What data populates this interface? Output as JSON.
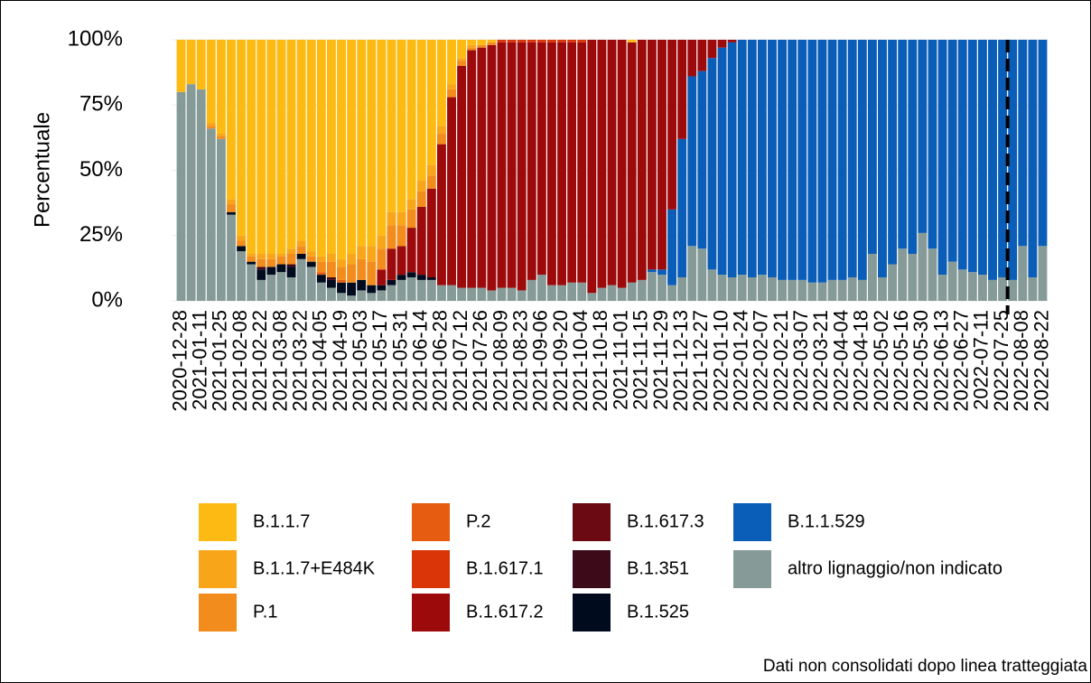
{
  "chart_data": {
    "type": "stacked_bar",
    "ylabel": "Percentuale",
    "caption": "Dati non consolidati dopo linea tratteggiata",
    "ylim": [
      0,
      100
    ],
    "yticks": [
      {
        "value": 0,
        "label": "0%"
      },
      {
        "value": 25,
        "label": "25%"
      },
      {
        "value": 50,
        "label": "50%"
      },
      {
        "value": 75,
        "label": "75%"
      },
      {
        "value": 100,
        "label": "100%"
      }
    ],
    "grid": true,
    "dashed_line_after": "2022-07-25",
    "categories": [
      "2020-12-28",
      null,
      "2021-01-11",
      null,
      "2021-01-25",
      null,
      "2021-02-08",
      null,
      "2021-02-22",
      null,
      "2021-03-08",
      null,
      "2021-03-22",
      null,
      "2021-04-05",
      null,
      "2021-04-19",
      null,
      "2021-05-03",
      null,
      "2021-05-17",
      null,
      "2021-05-31",
      null,
      "2021-06-14",
      null,
      "2021-06-28",
      null,
      "2021-07-12",
      null,
      "2021-07-26",
      null,
      "2021-08-09",
      null,
      "2021-08-23",
      null,
      "2021-09-06",
      null,
      "2021-09-20",
      null,
      "2021-10-04",
      null,
      "2021-10-18",
      null,
      "2021-11-01",
      null,
      "2021-11-15",
      null,
      "2021-11-29",
      null,
      "2021-12-13",
      null,
      "2021-12-27",
      null,
      "2022-01-10",
      null,
      "2022-01-24",
      null,
      "2022-02-07",
      null,
      "2022-02-21",
      null,
      "2022-03-07",
      null,
      "2022-03-21",
      null,
      "2022-04-04",
      null,
      "2022-04-18",
      null,
      "2022-05-02",
      null,
      "2022-05-16",
      null,
      "2022-05-30",
      null,
      "2022-06-13",
      null,
      "2022-06-27",
      null,
      "2022-07-11",
      null,
      "2022-07-25",
      null,
      "2022-08-08",
      null,
      "2022-08-22"
    ],
    "series": [
      {
        "name": "B.1.1.7",
        "color": "#fdba12",
        "values": [
          20,
          17,
          19,
          32,
          36,
          61,
          75,
          82,
          82,
          82,
          82,
          80,
          77,
          81,
          83,
          82,
          84,
          82,
          79,
          79,
          75,
          66,
          66,
          61,
          54,
          48,
          33,
          17,
          7,
          2,
          2,
          1,
          0,
          0,
          0,
          0,
          0,
          0,
          0,
          0,
          0,
          0,
          0,
          0,
          0,
          1,
          0,
          0,
          0,
          0,
          0,
          0,
          0,
          0,
          0,
          0,
          0,
          0,
          0,
          0,
          0,
          0,
          0,
          0,
          0,
          0,
          0,
          0,
          0,
          0,
          0,
          0,
          0,
          0,
          0,
          0,
          0,
          0,
          0,
          0,
          0,
          0,
          0,
          0,
          0,
          0,
          0
        ]
      },
      {
        "name": "B.1.1.7+E484K",
        "color": "#f8a51a",
        "values": [
          0,
          0,
          0,
          1,
          1,
          2,
          2,
          1,
          2,
          2,
          1,
          2,
          2,
          2,
          2,
          3,
          3,
          4,
          5,
          6,
          5,
          5,
          5,
          4,
          4,
          4,
          3,
          2,
          1,
          1,
          0,
          0,
          0,
          0,
          0,
          0,
          0,
          0,
          0,
          0,
          0,
          0,
          0,
          0,
          0,
          0,
          0,
          0,
          0,
          0,
          0,
          0,
          0,
          0,
          0,
          0,
          0,
          0,
          0,
          0,
          0,
          0,
          0,
          0,
          0,
          0,
          0,
          0,
          0,
          0,
          0,
          0,
          0,
          0,
          0,
          0,
          0,
          0,
          0,
          0,
          0,
          0,
          0,
          0,
          0,
          0,
          0
        ]
      },
      {
        "name": "P.1",
        "color": "#f28c1c",
        "values": [
          0,
          0,
          0,
          1,
          1,
          3,
          2,
          2,
          3,
          3,
          3,
          4,
          3,
          2,
          4,
          6,
          5,
          7,
          8,
          9,
          8,
          9,
          8,
          7,
          6,
          5,
          4,
          3,
          2,
          1,
          1,
          1,
          0,
          0,
          0,
          0,
          0,
          0,
          0,
          0,
          0,
          0,
          0,
          0,
          0,
          0,
          0,
          0,
          0,
          0,
          0,
          0,
          0,
          0,
          0,
          0,
          0,
          0,
          0,
          0,
          0,
          0,
          0,
          0,
          0,
          0,
          0,
          0,
          0,
          0,
          0,
          0,
          0,
          0,
          0,
          0,
          0,
          0,
          0,
          0,
          0,
          0,
          0,
          0,
          0,
          0,
          0
        ]
      },
      {
        "name": "P.2",
        "color": "#e65c11",
        "values": [
          0,
          0,
          0,
          0,
          0,
          0,
          0,
          0,
          0,
          0,
          0,
          0,
          0,
          0,
          1,
          0,
          1,
          0,
          0,
          0,
          0,
          0,
          0,
          0,
          0,
          0,
          0,
          0,
          0,
          0,
          0,
          0,
          0,
          0,
          0,
          0,
          0,
          0,
          0,
          0,
          0,
          0,
          0,
          0,
          0,
          0,
          0,
          0,
          0,
          0,
          0,
          0,
          0,
          0,
          0,
          0,
          0,
          0,
          0,
          0,
          0,
          0,
          0,
          0,
          0,
          0,
          0,
          0,
          0,
          0,
          0,
          0,
          0,
          0,
          0,
          0,
          0,
          0,
          0,
          0,
          0,
          0,
          0,
          0,
          0,
          0,
          0
        ]
      },
      {
        "name": "B.1.617.1",
        "color": "#da3409",
        "values": [
          0,
          0,
          0,
          0,
          0,
          0,
          0,
          0,
          0,
          0,
          0,
          0,
          0,
          0,
          0,
          0,
          0,
          0,
          0,
          0,
          0,
          0,
          0,
          0,
          0,
          0,
          0,
          0,
          0,
          0,
          0,
          0,
          1,
          1,
          1,
          1,
          1,
          1,
          1,
          1,
          1,
          0,
          0,
          0,
          0,
          0,
          0,
          0,
          0,
          0,
          0,
          0,
          0,
          0,
          0,
          0,
          0,
          0,
          0,
          0,
          0,
          0,
          0,
          0,
          0,
          0,
          0,
          0,
          0,
          0,
          0,
          0,
          0,
          0,
          0,
          0,
          0,
          0,
          0,
          0,
          0,
          0,
          0,
          0,
          0,
          0,
          0
        ]
      },
      {
        "name": "B.1.617.2",
        "color": "#9c0a0b",
        "values": [
          0,
          0,
          0,
          0,
          0,
          0,
          0,
          0,
          0,
          0,
          0,
          0,
          0,
          0,
          0,
          0,
          0,
          0,
          0,
          0,
          6,
          12,
          11,
          17,
          26,
          34,
          54,
          72,
          85,
          91,
          92,
          94,
          94,
          94,
          95,
          91,
          89,
          93,
          93,
          92,
          92,
          97,
          95,
          94,
          95,
          92,
          92,
          88,
          88,
          65,
          38,
          14,
          12,
          7,
          3,
          1,
          0,
          0,
          0,
          0,
          0,
          0,
          0,
          0,
          0,
          0,
          0,
          0,
          0,
          0,
          0,
          0,
          0,
          0,
          0,
          0,
          0,
          0,
          0,
          0,
          0,
          0,
          0,
          0,
          0,
          0,
          0
        ]
      },
      {
        "name": "B.1.617.3",
        "color": "#6b0a12",
        "values": [
          0,
          0,
          0,
          0,
          0,
          0,
          0,
          0,
          0,
          0,
          0,
          0,
          0,
          0,
          0,
          0,
          0,
          0,
          0,
          0,
          0,
          0,
          0,
          0,
          0,
          0,
          0,
          0,
          0,
          0,
          0,
          0,
          0,
          0,
          0,
          0,
          0,
          0,
          0,
          0,
          0,
          0,
          0,
          0,
          0,
          0,
          0,
          0,
          0,
          0,
          0,
          0,
          0,
          0,
          0,
          0,
          0,
          0,
          0,
          0,
          0,
          0,
          0,
          0,
          0,
          0,
          0,
          0,
          0,
          0,
          0,
          0,
          0,
          0,
          0,
          0,
          0,
          0,
          0,
          0,
          0,
          0,
          0,
          0,
          0,
          0,
          0
        ]
      },
      {
        "name": "B.1.351",
        "color": "#3d0a1a",
        "values": [
          0,
          0,
          0,
          0,
          0,
          0,
          0,
          0,
          1,
          0,
          0,
          1,
          0,
          0,
          0,
          1,
          0,
          0,
          0,
          0,
          0,
          0,
          0,
          0,
          0,
          0,
          0,
          0,
          0,
          0,
          0,
          0,
          0,
          0,
          0,
          0,
          0,
          0,
          0,
          0,
          0,
          0,
          0,
          0,
          0,
          0,
          0,
          0,
          0,
          0,
          0,
          0,
          0,
          0,
          0,
          0,
          0,
          0,
          0,
          0,
          0,
          0,
          0,
          0,
          0,
          0,
          0,
          0,
          0,
          0,
          0,
          0,
          0,
          0,
          0,
          0,
          0,
          0,
          0,
          0,
          0,
          0,
          0,
          0,
          0,
          0,
          0
        ]
      },
      {
        "name": "B.1.525",
        "color": "#000b1e",
        "values": [
          0,
          0,
          0,
          0,
          0,
          1,
          2,
          1,
          4,
          3,
          3,
          4,
          2,
          2,
          3,
          3,
          4,
          5,
          4,
          3,
          2,
          2,
          2,
          2,
          2,
          1,
          0,
          0,
          0,
          0,
          0,
          0,
          0,
          0,
          0,
          0,
          0,
          0,
          0,
          0,
          0,
          0,
          0,
          0,
          0,
          0,
          0,
          0,
          0,
          0,
          0,
          0,
          0,
          0,
          0,
          0,
          0,
          0,
          0,
          0,
          0,
          0,
          0,
          0,
          0,
          0,
          0,
          0,
          0,
          0,
          0,
          0,
          0,
          0,
          0,
          0,
          0,
          0,
          0,
          0,
          0,
          0,
          0,
          0,
          0,
          0,
          0
        ]
      },
      {
        "name": "B.1.1.529",
        "color": "#0a5eb8",
        "values": [
          0,
          0,
          0,
          0,
          0,
          0,
          0,
          0,
          0,
          0,
          0,
          0,
          0,
          0,
          0,
          0,
          0,
          0,
          0,
          0,
          0,
          0,
          0,
          0,
          0,
          0,
          0,
          0,
          0,
          0,
          0,
          0,
          0,
          0,
          0,
          0,
          0,
          0,
          0,
          0,
          0,
          0,
          0,
          0,
          0,
          0,
          0,
          1,
          2,
          29,
          53,
          65,
          68,
          81,
          87,
          90,
          90,
          91,
          90,
          91,
          92,
          92,
          92,
          93,
          93,
          92,
          92,
          91,
          92,
          82,
          91,
          86,
          80,
          82,
          74,
          80,
          90,
          85,
          88,
          89,
          90,
          92,
          91,
          92,
          79,
          91,
          79
        ]
      },
      {
        "name": "altro lignaggio/non indicato",
        "color": "#869b98",
        "values": [
          80,
          83,
          81,
          66,
          62,
          33,
          19,
          14,
          8,
          10,
          11,
          9,
          16,
          13,
          7,
          5,
          3,
          2,
          4,
          3,
          4,
          6,
          8,
          9,
          8,
          8,
          6,
          6,
          5,
          5,
          5,
          4,
          5,
          5,
          4,
          8,
          10,
          6,
          6,
          7,
          7,
          3,
          5,
          6,
          5,
          7,
          8,
          11,
          10,
          6,
          9,
          21,
          20,
          12,
          10,
          9,
          10,
          9,
          10,
          9,
          8,
          8,
          8,
          7,
          7,
          8,
          8,
          9,
          8,
          18,
          9,
          14,
          20,
          18,
          26,
          20,
          10,
          15,
          12,
          11,
          10,
          8,
          9,
          8,
          21,
          9,
          21
        ]
      }
    ]
  }
}
